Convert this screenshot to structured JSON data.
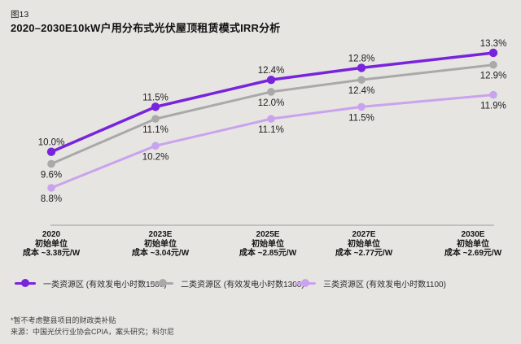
{
  "header": {
    "figure_label": "图13",
    "title": "2020–2030E10kW户用分布式光伏屋顶租赁模式IRR分析"
  },
  "chart_data": {
    "type": "line",
    "title": "2020–2030E10kW户用分布式光伏屋顶租赁模式IRR分析",
    "unit": "%",
    "ylim": [
      8.5,
      13.5
    ],
    "grid": false,
    "legend_position": "bottom",
    "axis_line_color": "#9b9b9b",
    "categories": [
      {
        "year": "2020",
        "sub1": "初始单位",
        "sub2": "成本 ~3.38元/W"
      },
      {
        "year": "2023E",
        "sub1": "初始单位",
        "sub2": "成本 ~3.04元/W"
      },
      {
        "year": "2025E",
        "sub1": "初始单位",
        "sub2": "成本 ~2.85元/W"
      },
      {
        "year": "2027E",
        "sub1": "初始单位",
        "sub2": "成本 ~2.77元/W"
      },
      {
        "year": "2030E",
        "sub1": "初始单位",
        "sub2": "成本 ~2.69元/W"
      }
    ],
    "series": [
      {
        "name": "一类资源区 (有效发电小时数1500)",
        "color": "#7823DC",
        "values": [
          10.0,
          11.5,
          12.4,
          12.8,
          13.3
        ],
        "labels": [
          "10.0%",
          "11.5%",
          "12.4%",
          "12.8%",
          "13.3%"
        ],
        "label_position": "above"
      },
      {
        "name": "二类资源区 (有效发电小时数1300)",
        "color": "#A9A9A9",
        "values": [
          9.6,
          11.1,
          12.0,
          12.4,
          12.9
        ],
        "labels": [
          "9.6%",
          "11.1%",
          "12.0%",
          "12.4%",
          "12.9%"
        ],
        "label_position": "below"
      },
      {
        "name": "三类资源区 (有效发电小时数1100)",
        "color": "#C9A3ED",
        "values": [
          8.8,
          10.2,
          11.1,
          11.5,
          11.9
        ],
        "labels": [
          "8.8%",
          "10.2%",
          "11.1%",
          "11.5%",
          "11.9%"
        ],
        "label_position": "below"
      }
    ],
    "label_color": "#1d1d1d"
  },
  "footer": {
    "note": "*暂不考虑整县项目的财政类补贴",
    "source": "来源：中国光伏行业协会CPIA，案头研究；科尔尼"
  }
}
